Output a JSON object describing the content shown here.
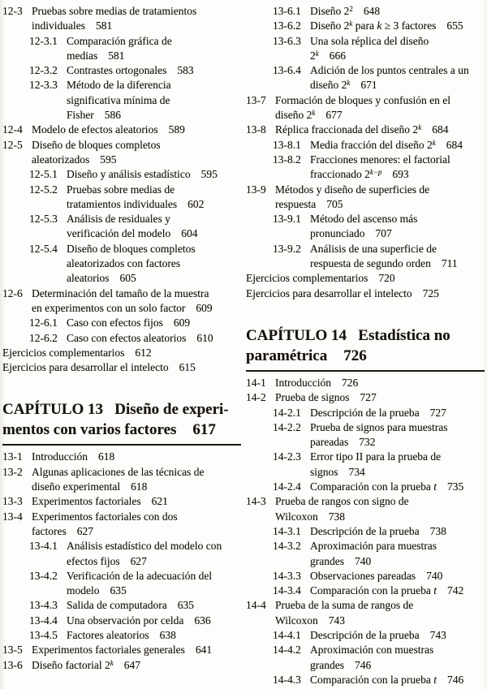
{
  "page": {
    "kind": "table-of-contents",
    "background": "#fdfdfb",
    "text_color": "#18130e",
    "rule_color": "#1b1611"
  },
  "columns": [
    {
      "name": "left",
      "entries": [
        {
          "type": "item",
          "level": 1,
          "num": "12-3",
          "lines": [
            "Pruebas sobre medias de tratamientos",
            "individuales"
          ],
          "page": "581"
        },
        {
          "type": "item",
          "level": 2,
          "num": "12-3.1",
          "lines": [
            "Comparación gráfica de",
            "medias"
          ],
          "page": "581"
        },
        {
          "type": "item",
          "level": 2,
          "num": "12-3.2",
          "lines": [
            "Contrastes ortogonales"
          ],
          "page": "583"
        },
        {
          "type": "item",
          "level": 2,
          "num": "12-3.3",
          "lines": [
            "Método de la diferencia",
            "significativa mínima de",
            "Fisher"
          ],
          "page": "586"
        },
        {
          "type": "item",
          "level": 1,
          "num": "12-4",
          "lines": [
            "Modelo de efectos aleatorios"
          ],
          "page": "589"
        },
        {
          "type": "item",
          "level": 1,
          "num": "12-5",
          "lines": [
            "Diseño de bloques completos",
            "aleatorizados"
          ],
          "page": "595"
        },
        {
          "type": "item",
          "level": 2,
          "num": "12-5.1",
          "lines": [
            "Diseño y análisis estadístico"
          ],
          "page": "595"
        },
        {
          "type": "item",
          "level": 2,
          "num": "12-5.2",
          "lines": [
            "Pruebas sobre medias de",
            "tratamientos individuales"
          ],
          "page": "602"
        },
        {
          "type": "item",
          "level": 2,
          "num": "12-5.3",
          "lines": [
            "Análisis de residuales y",
            "verificación del modelo"
          ],
          "page": "604"
        },
        {
          "type": "item",
          "level": 2,
          "num": "12-5.4",
          "lines": [
            "Diseño de bloques completos",
            "aleatorizados con factores",
            "aleatorios"
          ],
          "page": "605"
        },
        {
          "type": "item",
          "level": 1,
          "num": "12-6",
          "lines": [
            "Determinación del tamaño de la muestra",
            "en experimentos con un solo factor"
          ],
          "page": "609"
        },
        {
          "type": "item",
          "level": 2,
          "num": "12-6.1",
          "lines": [
            "Caso con efectos fijos"
          ],
          "page": "609"
        },
        {
          "type": "item",
          "level": 2,
          "num": "12-6.2",
          "lines": [
            "Caso con efectos aleatorios"
          ],
          "page": "610"
        },
        {
          "type": "item",
          "level": 0,
          "lines": [
            "Ejercicios complementarios"
          ],
          "page": "612"
        },
        {
          "type": "item",
          "level": 0,
          "lines": [
            "Ejercicios para desarrollar el intelecto"
          ],
          "page": "615"
        },
        {
          "type": "chapter",
          "label": "CAPÍTULO 13",
          "title": "Diseño de experimentos con varios factores",
          "lines": [
            "CAPÍTULO 13   Diseño de experi-",
            "mentos con varios factores"
          ],
          "page": "617"
        },
        {
          "type": "item",
          "level": 1,
          "num": "13-1",
          "lines": [
            "Introducción"
          ],
          "page": "618"
        },
        {
          "type": "item",
          "level": 1,
          "num": "13-2",
          "lines": [
            "Algunas aplicaciones de las técnicas de",
            "diseño experimental"
          ],
          "page": "618"
        },
        {
          "type": "item",
          "level": 1,
          "num": "13-3",
          "lines": [
            "Experimentos factoriales"
          ],
          "page": "621"
        },
        {
          "type": "item",
          "level": 1,
          "num": "13-4",
          "lines": [
            "Experimentos factoriales con dos",
            "factores"
          ],
          "page": "627"
        },
        {
          "type": "item",
          "level": 2,
          "num": "13-4.1",
          "lines": [
            "Análisis estadístico del modelo con",
            "efectos fijos"
          ],
          "page": "627"
        },
        {
          "type": "item",
          "level": 2,
          "num": "13-4.2",
          "lines": [
            "Verificación de la adecuación del",
            "modelo"
          ],
          "page": "635"
        },
        {
          "type": "item",
          "level": 2,
          "num": "13-4.3",
          "lines": [
            "Salida de computadora"
          ],
          "page": "635"
        },
        {
          "type": "item",
          "level": 2,
          "num": "13-4.4",
          "lines": [
            "Una observación por celda"
          ],
          "page": "636"
        },
        {
          "type": "item",
          "level": 2,
          "num": "13-4.5",
          "lines": [
            "Factores aleatorios"
          ],
          "page": "638"
        },
        {
          "type": "item",
          "level": 1,
          "num": "13-5",
          "lines": [
            "Experimentos factoriales generales"
          ],
          "page": "641"
        },
        {
          "type": "item",
          "level": 1,
          "num": "13-6",
          "lines": [
            [
              {
                "t": "Diseño factorial 2"
              },
              {
                "t": "k",
                "sup": true,
                "i": true
              }
            ]
          ],
          "page": "647"
        }
      ]
    },
    {
      "name": "right",
      "entries": [
        {
          "type": "item",
          "level": 2,
          "num": "13-6.1",
          "lines": [
            [
              {
                "t": "Diseño 2"
              },
              {
                "t": "2",
                "sup": true
              }
            ]
          ],
          "page": "648"
        },
        {
          "type": "item",
          "level": 2,
          "num": "13-6.2",
          "lines": [
            [
              {
                "t": "Diseño 2"
              },
              {
                "t": "k",
                "sup": true,
                "i": true
              },
              {
                "t": " para "
              },
              {
                "t": "k",
                "i": true
              },
              {
                "t": " ≥ 3 factores"
              }
            ]
          ],
          "page": "655"
        },
        {
          "type": "item",
          "level": 2,
          "num": "13-6.3",
          "lines": [
            "Una sola réplica del diseño",
            [
              {
                "t": "2"
              },
              {
                "t": "k",
                "sup": true,
                "i": true
              }
            ]
          ],
          "page": "666"
        },
        {
          "type": "item",
          "level": 2,
          "num": "13-6.4",
          "lines": [
            "Adición de los puntos centrales a un",
            [
              {
                "t": "diseño 2"
              },
              {
                "t": "k",
                "sup": true,
                "i": true
              }
            ]
          ],
          "page": "671"
        },
        {
          "type": "item",
          "level": 1,
          "num": "13-7",
          "lines": [
            "Formación de bloques y confusión en el",
            [
              {
                "t": "diseño 2"
              },
              {
                "t": "k",
                "sup": true,
                "i": true
              }
            ]
          ],
          "page": "677"
        },
        {
          "type": "item",
          "level": 1,
          "num": "13-8",
          "lines": [
            [
              {
                "t": "Réplica fraccionada del diseño 2"
              },
              {
                "t": "k",
                "sup": true,
                "i": true
              }
            ]
          ],
          "page": "684"
        },
        {
          "type": "item",
          "level": 2,
          "num": "13-8.1",
          "lines": [
            [
              {
                "t": "Media fracción del diseño 2"
              },
              {
                "t": "k",
                "sup": true,
                "i": true
              }
            ]
          ],
          "page": "684"
        },
        {
          "type": "item",
          "level": 2,
          "num": "13-8.2",
          "lines": [
            "Fracciones menores: el factorial",
            [
              {
                "t": "fraccionado 2"
              },
              {
                "t": "k−p",
                "sup": true,
                "i": true
              }
            ]
          ],
          "page": "693"
        },
        {
          "type": "item",
          "level": 1,
          "num": "13-9",
          "lines": [
            "Métodos y diseño de superficies de",
            "respuesta"
          ],
          "page": "705"
        },
        {
          "type": "item",
          "level": 2,
          "num": "13-9.1",
          "lines": [
            "Método del ascenso más",
            "pronunciado"
          ],
          "page": "707"
        },
        {
          "type": "item",
          "level": 2,
          "num": "13-9.2",
          "lines": [
            "Análisis de una superficie de",
            "respuesta de segundo orden"
          ],
          "page": "711"
        },
        {
          "type": "item",
          "level": 0,
          "lines": [
            "Ejercicios complementarios"
          ],
          "page": "720"
        },
        {
          "type": "item",
          "level": 0,
          "lines": [
            "Ejercicios para desarrollar el intelecto"
          ],
          "page": "725"
        },
        {
          "type": "chapter",
          "label": "CAPÍTULO 14",
          "title": "Estadística no paramétrica",
          "lines": [
            "CAPÍTULO 14   Estadística no",
            "paramétrica"
          ],
          "page": "726"
        },
        {
          "type": "item",
          "level": 1,
          "num": "14-1",
          "lines": [
            "Introducción"
          ],
          "page": "726"
        },
        {
          "type": "item",
          "level": 1,
          "num": "14-2",
          "lines": [
            "Prueba de signos"
          ],
          "page": "727"
        },
        {
          "type": "item",
          "level": 2,
          "num": "14-2.1",
          "lines": [
            "Descripción de la prueba"
          ],
          "page": "727"
        },
        {
          "type": "item",
          "level": 2,
          "num": "14-2.2",
          "lines": [
            "Prueba de signos para muestras",
            "pareadas"
          ],
          "page": "732"
        },
        {
          "type": "item",
          "level": 2,
          "num": "14-2.3",
          "lines": [
            "Error tipo II para la prueba de",
            "signos"
          ],
          "page": "734"
        },
        {
          "type": "item",
          "level": 2,
          "num": "14-2.4",
          "lines": [
            [
              {
                "t": "Comparación con la prueba "
              },
              {
                "t": "t",
                "i": true
              }
            ]
          ],
          "page": "735"
        },
        {
          "type": "item",
          "level": 1,
          "num": "14-3",
          "lines": [
            "Prueba de rangos con signo de",
            "Wilcoxon"
          ],
          "page": "738"
        },
        {
          "type": "item",
          "level": 2,
          "num": "14-3.1",
          "lines": [
            "Descripción de la prueba"
          ],
          "page": "738"
        },
        {
          "type": "item",
          "level": 2,
          "num": "14-3.2",
          "lines": [
            "Aproximación para muestras",
            "grandes"
          ],
          "page": "740"
        },
        {
          "type": "item",
          "level": 2,
          "num": "14-3.3",
          "lines": [
            "Observaciones pareadas"
          ],
          "page": "740"
        },
        {
          "type": "item",
          "level": 2,
          "num": "14-3.4",
          "lines": [
            [
              {
                "t": "Comparación con la prueba "
              },
              {
                "t": "t",
                "i": true
              }
            ]
          ],
          "page": "742"
        },
        {
          "type": "item",
          "level": 1,
          "num": "14-4",
          "lines": [
            "Prueba de la suma de rangos de",
            "Wilcoxon"
          ],
          "page": "743"
        },
        {
          "type": "item",
          "level": 2,
          "num": "14-4.1",
          "lines": [
            "Descripción de la prueba"
          ],
          "page": "743"
        },
        {
          "type": "item",
          "level": 2,
          "num": "14-4.2",
          "lines": [
            "Aproximación con muestras",
            "grandes"
          ],
          "page": "746"
        },
        {
          "type": "item",
          "level": 2,
          "num": "14-4.3",
          "lines": [
            [
              {
                "t": "Comparación con la prueba "
              },
              {
                "t": "t",
                "i": true
              }
            ]
          ],
          "page": "746"
        }
      ]
    }
  ]
}
